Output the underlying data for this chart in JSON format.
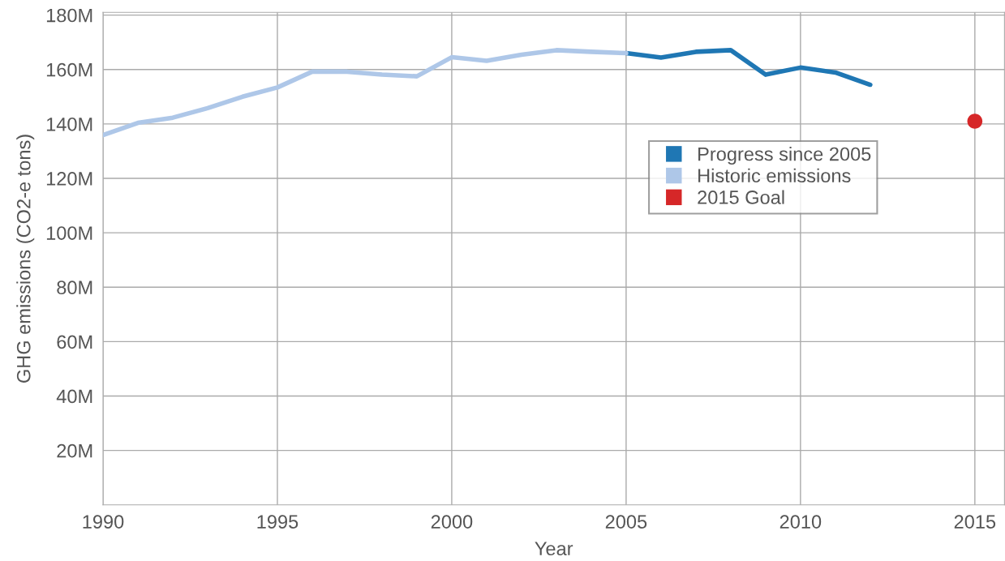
{
  "chart_data": {
    "type": "line",
    "xlabel": "Year",
    "ylabel": "GHG emissions (CO2-e tons)",
    "xlim": [
      1990,
      2015.85
    ],
    "xticks": [
      1990,
      1995,
      2000,
      2005,
      2010,
      2015
    ],
    "ylim": [
      0,
      181
    ],
    "yticks": [
      {
        "value": 20,
        "label": "20M"
      },
      {
        "value": 40,
        "label": "40M"
      },
      {
        "value": 60,
        "label": "60M"
      },
      {
        "value": 80,
        "label": "80M"
      },
      {
        "value": 100,
        "label": "100M"
      },
      {
        "value": 120,
        "label": "120M"
      },
      {
        "value": 140,
        "label": "140M"
      },
      {
        "value": 160,
        "label": "160M"
      },
      {
        "value": 180,
        "label": "180M"
      }
    ],
    "grid": true,
    "legend": "right",
    "series": [
      {
        "name": "Progress since 2005",
        "color": "#1f77b4",
        "x": [
          2005,
          2006,
          2007,
          2008,
          2009,
          2010,
          2011,
          2012
        ],
        "values": [
          166.0,
          164.4,
          166.5,
          167.1,
          158.1,
          160.7,
          158.9,
          154.4
        ]
      },
      {
        "name": "Historic emissions",
        "color": "#aec7e8",
        "x": [
          1990,
          1991,
          1992,
          1993,
          1994,
          1995,
          1996,
          1997,
          1998,
          1999,
          2000,
          2001,
          2002,
          2003,
          2004,
          2005
        ],
        "values": [
          135.9,
          140.4,
          142.3,
          145.8,
          150.0,
          153.4,
          159.2,
          159.2,
          158.1,
          157.5,
          164.5,
          163.2,
          165.4,
          167.1,
          166.5,
          166.0
        ]
      },
      {
        "name": "2015 Goal",
        "color": "#d62728",
        "type": "scatter",
        "x": [
          2015
        ],
        "values": [
          141.0
        ]
      }
    ]
  }
}
